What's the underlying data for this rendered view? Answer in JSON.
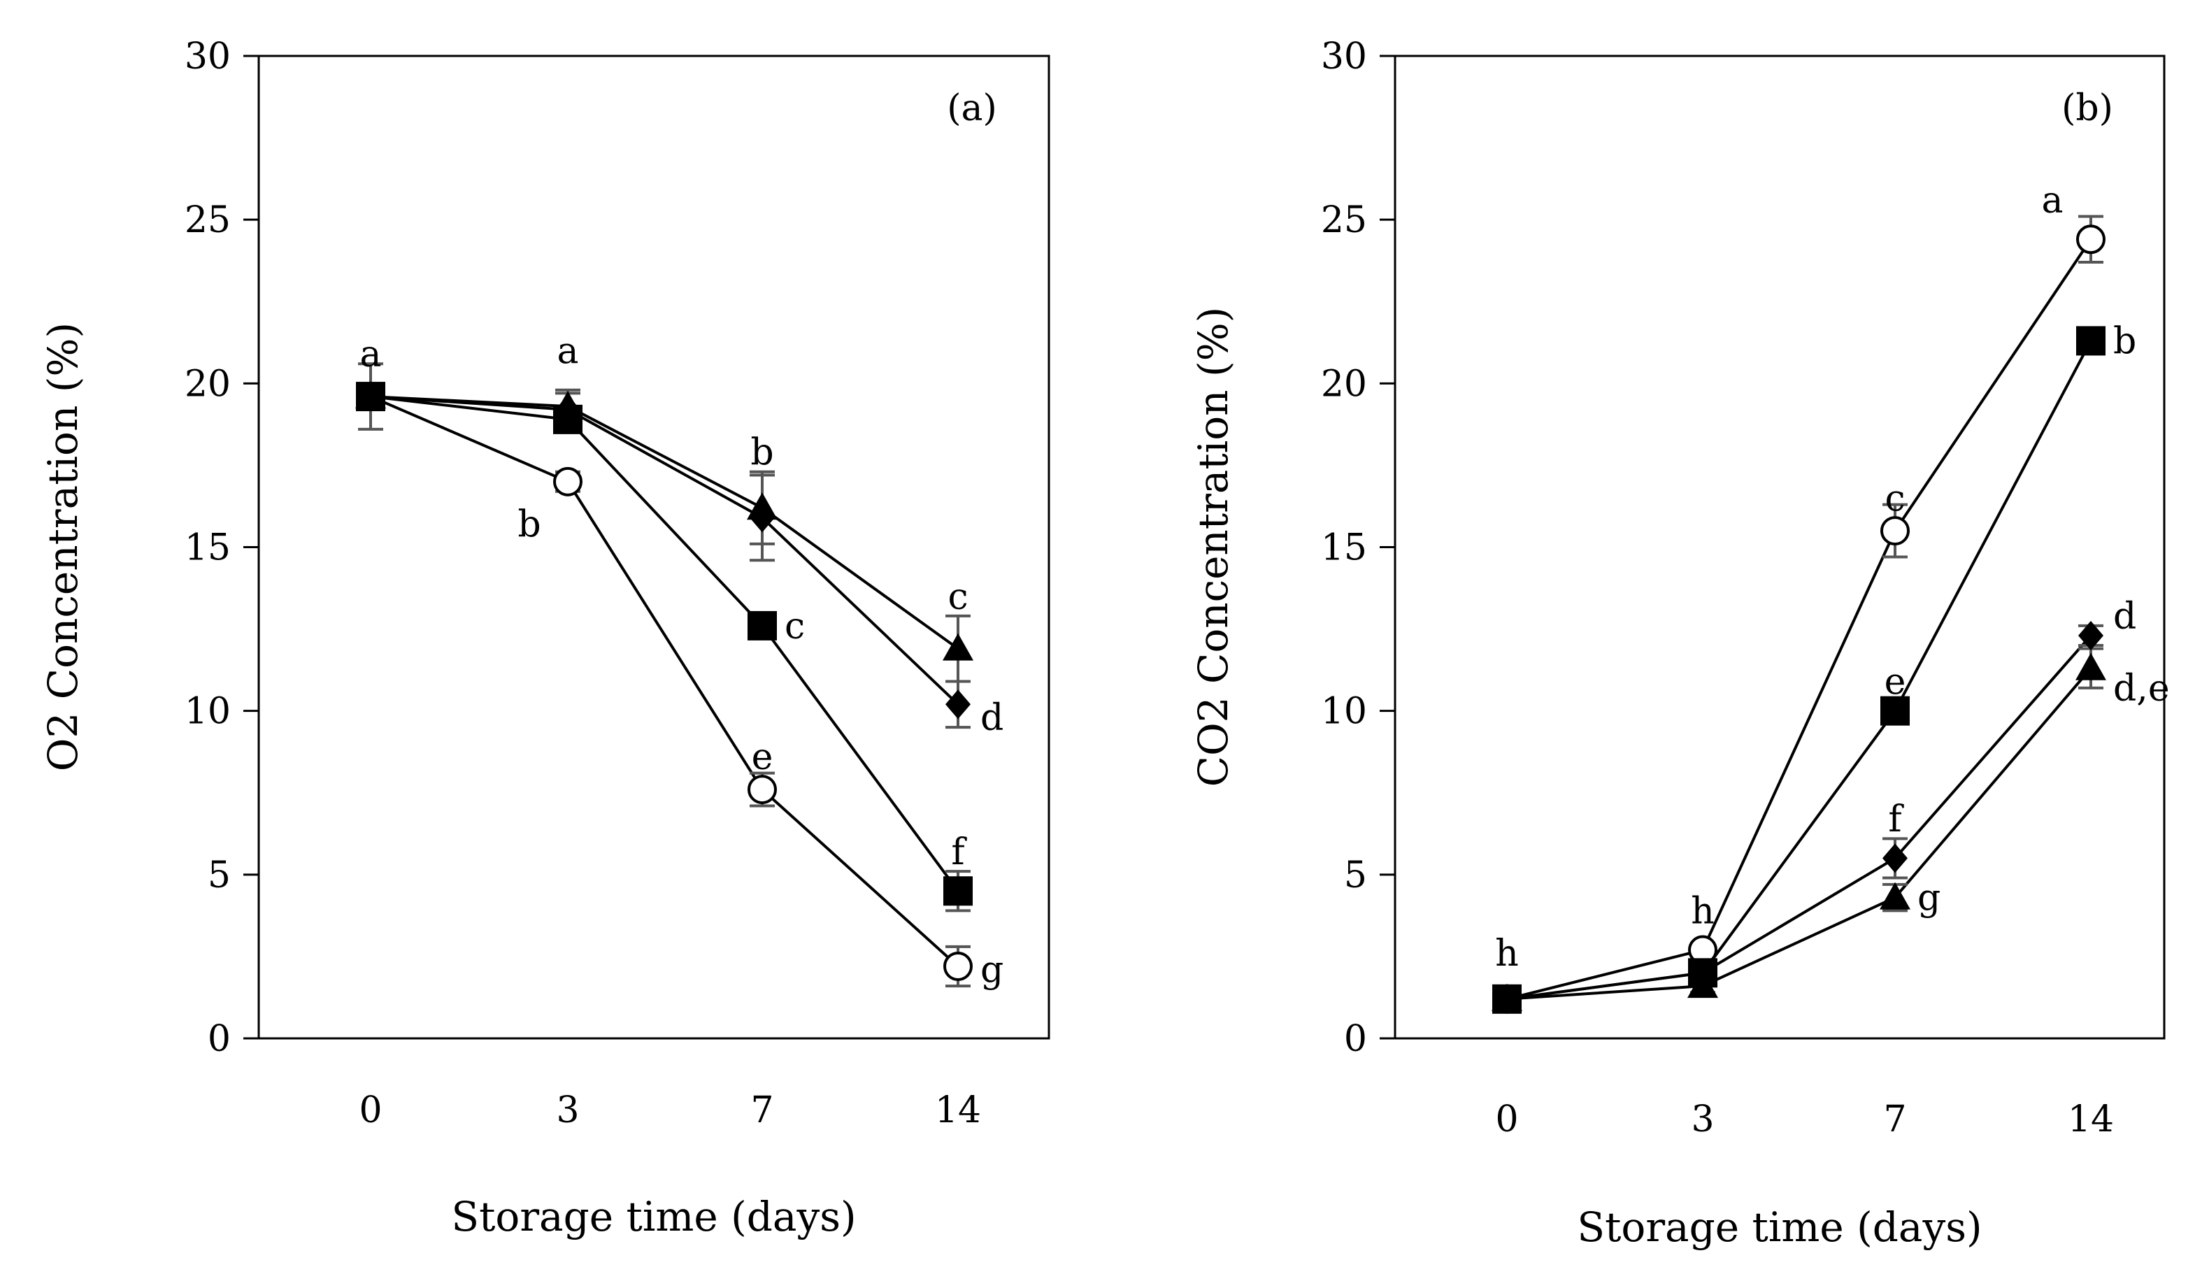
{
  "chart_data": [
    {
      "id": "a",
      "type": "line",
      "panel_label": "(a)",
      "xlabel": "Storage time (days)",
      "ylabel": "O2 Concentration (%)",
      "categories": [
        "0",
        "3",
        "7",
        "14"
      ],
      "ylim": [
        0,
        30
      ],
      "yticks": [
        "0",
        "5",
        "10",
        "15",
        "20",
        "25",
        "30"
      ],
      "grid": false,
      "legend": "none",
      "series": [
        {
          "marker": "circle-open",
          "values": [
            19.6,
            17.0,
            7.6,
            2.2
          ],
          "errors": [
            0.3,
            0.3,
            0.5,
            0.6
          ]
        },
        {
          "marker": "square",
          "values": [
            19.6,
            18.9,
            12.6,
            4.5
          ],
          "errors": [
            1.0,
            0.4,
            0.4,
            0.6
          ]
        },
        {
          "marker": "diamond",
          "values": [
            19.6,
            19.2,
            15.9,
            10.2
          ],
          "errors": [
            0.3,
            0.5,
            1.3,
            0.7
          ]
        },
        {
          "marker": "triangle",
          "values": [
            19.6,
            19.3,
            16.2,
            11.9
          ],
          "errors": [
            0.3,
            0.5,
            1.1,
            1.0
          ]
        }
      ],
      "annotations": [
        {
          "text": "a",
          "x": "0",
          "y": 20.9
        },
        {
          "text": "a",
          "x": "3",
          "y": 21.0
        },
        {
          "text": "b",
          "x": "3",
          "y": 15.7
        },
        {
          "text": "b",
          "x": "7",
          "y": 17.9
        },
        {
          "text": "c",
          "x": "7",
          "y": 12.6
        },
        {
          "text": "e",
          "x": "7",
          "y": 8.6
        },
        {
          "text": "c",
          "x": "14",
          "y": 13.5
        },
        {
          "text": "d",
          "x": "14",
          "y": 9.8
        },
        {
          "text": "f",
          "x": "14",
          "y": 5.7
        },
        {
          "text": "g",
          "x": "14",
          "y": 2.1
        }
      ]
    },
    {
      "id": "b",
      "type": "line",
      "panel_label": "(b)",
      "xlabel": "Storage time (days)",
      "ylabel": "CO2 Concentration (%)",
      "categories": [
        "0",
        "3",
        "7",
        "14"
      ],
      "ylim": [
        0,
        30
      ],
      "yticks": [
        "0",
        "5",
        "10",
        "15",
        "20",
        "25",
        "30"
      ],
      "grid": false,
      "legend": "none",
      "series": [
        {
          "marker": "circle-open",
          "values": [
            1.2,
            2.7,
            15.5,
            24.4
          ],
          "errors": [
            0.2,
            0.2,
            0.8,
            0.7
          ]
        },
        {
          "marker": "square",
          "values": [
            1.2,
            2.0,
            10.0,
            21.3
          ],
          "errors": [
            0.2,
            0.2,
            0.3,
            0.3
          ]
        },
        {
          "marker": "diamond",
          "values": [
            1.2,
            2.0,
            5.5,
            12.3
          ],
          "errors": [
            0.2,
            0.2,
            0.6,
            0.3
          ]
        },
        {
          "marker": "triangle",
          "values": [
            1.2,
            1.6,
            4.3,
            11.3
          ],
          "errors": [
            0.2,
            0.2,
            0.4,
            0.6
          ]
        }
      ],
      "annotations": [
        {
          "text": "h",
          "x": "0",
          "y": 2.6
        },
        {
          "text": "h",
          "x": "3",
          "y": 3.9
        },
        {
          "text": "c",
          "x": "7",
          "y": 16.5
        },
        {
          "text": "e",
          "x": "7",
          "y": 10.9
        },
        {
          "text": "f",
          "x": "7",
          "y": 6.7
        },
        {
          "text": "g",
          "x": "7",
          "y": 4.3
        },
        {
          "text": "a",
          "x": "14",
          "y": 25.6
        },
        {
          "text": "b",
          "x": "14",
          "y": 21.3
        },
        {
          "text": "d",
          "x": "14",
          "y": 12.9
        },
        {
          "text": "d,e",
          "x": "14",
          "y": 10.7
        }
      ]
    }
  ]
}
